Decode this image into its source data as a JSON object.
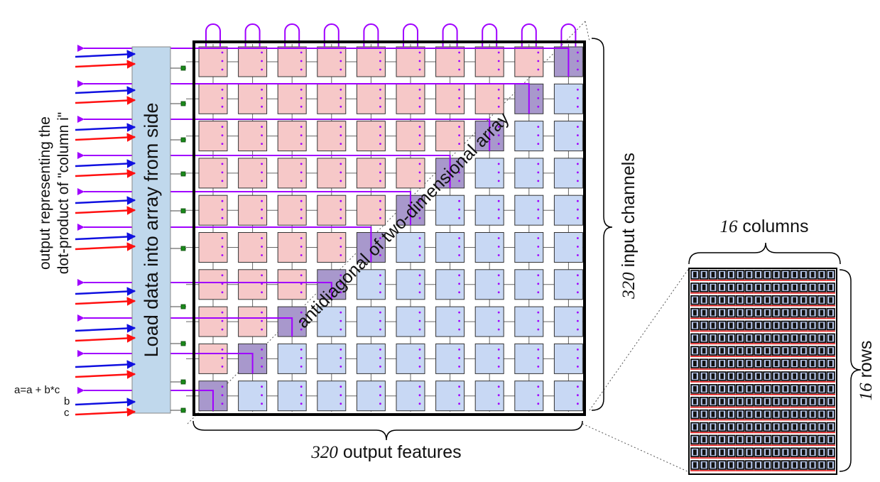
{
  "left_labels": {
    "output_line1": "output representing the",
    "output_line2": "dot-product of \"column i\"",
    "equation": "a=a + b*c",
    "b": "b",
    "c": "c"
  },
  "load_bar": "Load data into array from side",
  "diagonal": "antidiagonal of two-dimensional array",
  "input_channels": {
    "number": "320",
    "text": " input channels"
  },
  "output_features": {
    "number": "320",
    "text": " output features"
  },
  "zoom": {
    "columns": {
      "number": "16",
      "text": " columns"
    },
    "rows": {
      "number": "16",
      "text": " rows"
    }
  },
  "colors": {
    "pink": "#f6c8c8",
    "blue": "#c8d8f4",
    "purple_cell": "#a898cc",
    "purple_arrow": "#a000ff",
    "blue_arrow": "#1010e0",
    "red_arrow": "#ff1010",
    "load_bar": "#c0d8ec",
    "marker": "#1a8a1a"
  },
  "grid": {
    "columns": 10,
    "rows": 10,
    "zoom_columns": 16,
    "zoom_rows": 16
  }
}
